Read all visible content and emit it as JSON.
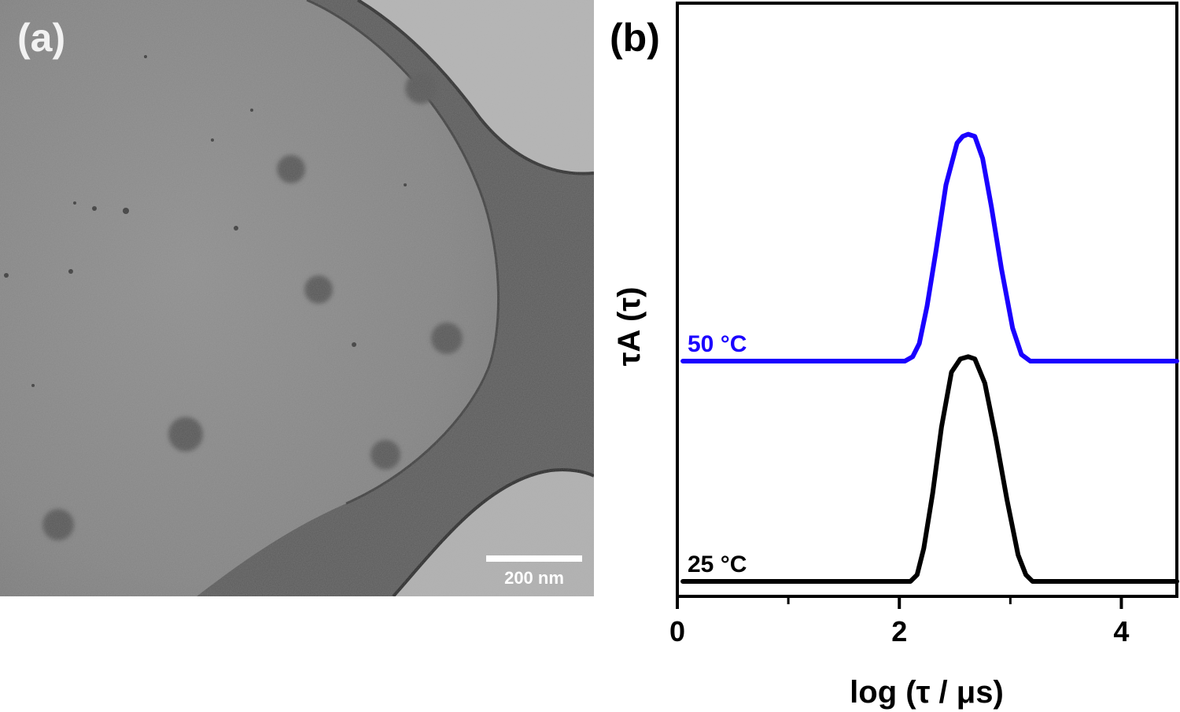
{
  "panel_a": {
    "label": "(a)",
    "scale_bar_label": "200 nm"
  },
  "chart_data": {
    "type": "line",
    "panel_label": "(b)",
    "title": "",
    "xlabel": "log (τ / μs)",
    "ylabel": "τA (τ)",
    "xlim": [
      0,
      4.5
    ],
    "x_ticks": [
      0,
      2,
      4
    ],
    "x_tick_labels": [
      "0",
      "2",
      "4"
    ],
    "x_minor_ticks": [
      1,
      3
    ],
    "y_ticks_shown": false,
    "grid": false,
    "colors": {
      "50 °C": "#1a00ff",
      "25 °C": "#000000"
    },
    "series": [
      {
        "name": "50 °C",
        "color": "#1a00ff",
        "x": [
          0.05,
          2.05,
          2.12,
          2.18,
          2.25,
          2.33,
          2.42,
          2.52,
          2.57,
          2.62,
          2.68,
          2.75,
          2.83,
          2.92,
          3.02,
          3.1,
          3.18,
          4.5
        ],
        "y": [
          1.0,
          1.0,
          1.02,
          1.08,
          1.25,
          1.5,
          1.8,
          1.99,
          2.02,
          2.03,
          2.02,
          1.92,
          1.7,
          1.42,
          1.15,
          1.03,
          1.0,
          1.0
        ]
      },
      {
        "name": "25 °C",
        "color": "#000000",
        "x": [
          0.05,
          2.1,
          2.16,
          2.22,
          2.3,
          2.38,
          2.47,
          2.55,
          2.62,
          2.68,
          2.77,
          2.87,
          2.97,
          3.07,
          3.14,
          3.2,
          4.5
        ],
        "y": [
          0.0,
          0.0,
          0.03,
          0.15,
          0.4,
          0.7,
          0.95,
          1.01,
          1.02,
          1.01,
          0.9,
          0.65,
          0.37,
          0.12,
          0.03,
          0.0,
          0.0
        ]
      }
    ]
  }
}
